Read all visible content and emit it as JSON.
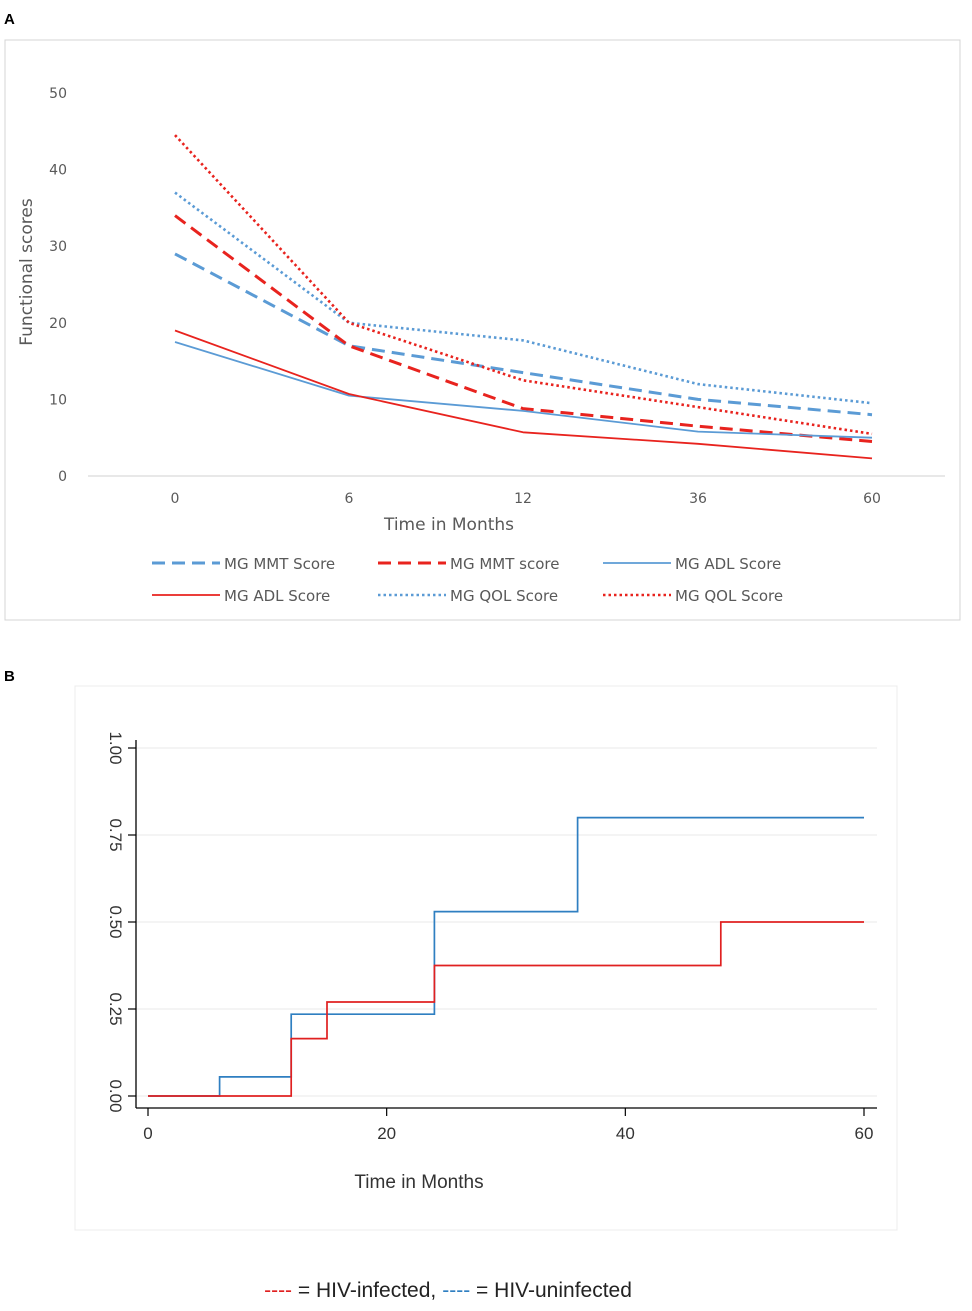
{
  "colors": {
    "blue": "#5b9bd5",
    "red": "#e8231e",
    "stepBlue": "#2f7fc1",
    "stepRed": "#e02020"
  },
  "chart_data": [
    {
      "panel": "A",
      "type": "line",
      "ylabel": "Functional scores",
      "xlabel": "Time in Months",
      "categories": [
        "0",
        "6",
        "12",
        "36",
        "60"
      ],
      "yticks": [
        0,
        10,
        20,
        30,
        40,
        50
      ],
      "ylim": [
        0,
        50
      ],
      "grid": false,
      "legend_position": "bottom",
      "series": [
        {
          "name": "MG MMT Score",
          "group": "HIV-uninfected",
          "color": "#5b9bd5",
          "style": "dashed",
          "values": [
            29,
            17,
            13.5,
            10,
            8
          ]
        },
        {
          "name": "MG MMT score",
          "group": "HIV-infected",
          "color": "#e8231e",
          "style": "dashed",
          "values": [
            34,
            17,
            8.8,
            6.5,
            4.5
          ]
        },
        {
          "name": "MG ADL Score",
          "group": "HIV-uninfected",
          "color": "#5b9bd5",
          "style": "solid",
          "values": [
            17.5,
            10.5,
            8.5,
            5.8,
            5
          ]
        },
        {
          "name": "MG ADL Score",
          "group": "HIV-infected",
          "color": "#e8231e",
          "style": "solid",
          "values": [
            19,
            10.7,
            5.7,
            4.2,
            2.3
          ]
        },
        {
          "name": "MG QOL Score",
          "group": "HIV-uninfected",
          "color": "#5b9bd5",
          "style": "dotted",
          "values": [
            37,
            20,
            17.7,
            12,
            9.5
          ]
        },
        {
          "name": "MG QOL Score",
          "group": "HIV-infected",
          "color": "#e8231e",
          "style": "dotted",
          "values": [
            44.5,
            20,
            12.5,
            9,
            5.5
          ]
        }
      ]
    },
    {
      "panel": "B",
      "type": "line",
      "subtype": "step",
      "xlabel": "Time in Months",
      "xticks": [
        0,
        20,
        40,
        60
      ],
      "yticks": [
        "0.00",
        "0.25",
        "0.50",
        "0.75",
        "1.00"
      ],
      "xlim": [
        0,
        60
      ],
      "ylim": [
        0,
        1
      ],
      "grid": true,
      "series": [
        {
          "name": "HIV-uninfected",
          "color": "#2f7fc1",
          "x": [
            0,
            6,
            12,
            24,
            36,
            60
          ],
          "y": [
            0,
            0.055,
            0.235,
            0.53,
            0.8,
            0.8
          ]
        },
        {
          "name": "HIV-infected",
          "color": "#e02020",
          "x": [
            0,
            12,
            15,
            24,
            48,
            60
          ],
          "y": [
            0,
            0.165,
            0.27,
            0.375,
            0.5,
            0.5
          ]
        }
      ]
    }
  ],
  "panels": {
    "a": "A",
    "b": "B"
  },
  "caption": {
    "infected_marker": "----",
    "infected_text": " = HIV-infected,",
    "uninfected_marker": "----",
    "uninfected_text": " = HIV-uninfected"
  }
}
